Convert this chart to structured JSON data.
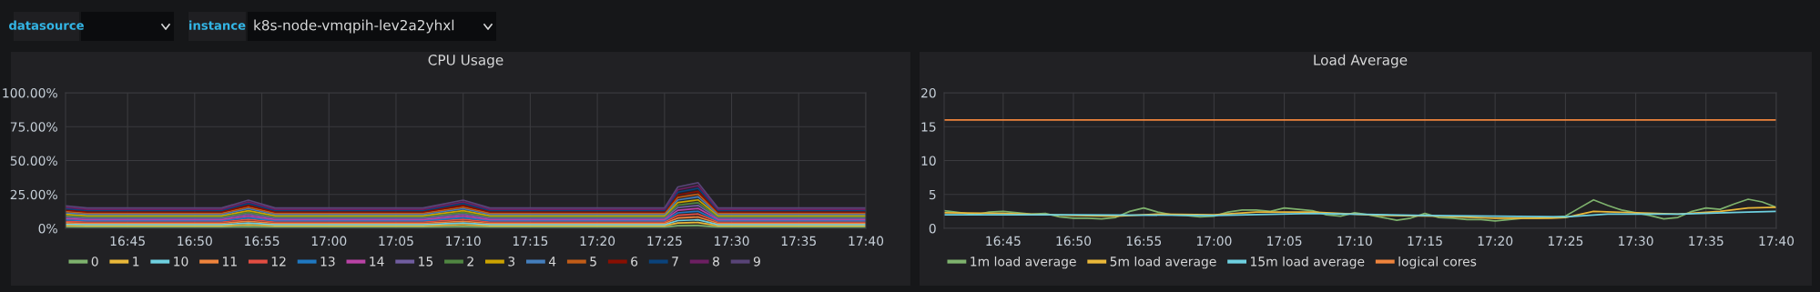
{
  "chart_data": [
    {
      "type": "other",
      "annotations": [
        "datasource",
        "instance",
        "k8s-node-vmqpih-lev2a2yhxl"
      ]
    },
    {
      "type": "area",
      "title": "CPU Usage",
      "stacked": true,
      "grid": true,
      "legend": "bottom",
      "x": [
        16.673,
        16.7,
        16.8667,
        16.9,
        16.9333,
        17.1167,
        17.1667,
        17.2,
        17.4167,
        17.4333,
        17.4583,
        17.4833,
        17.6667
      ],
      "xlim": [
        16.673,
        17.6667
      ],
      "xticks": [
        {
          "value": 16.75,
          "label": "16:45"
        },
        {
          "value": 16.8333,
          "label": "16:50"
        },
        {
          "value": 16.9167,
          "label": "16:55"
        },
        {
          "value": 17.0,
          "label": "17:00"
        },
        {
          "value": 17.0833,
          "label": "17:05"
        },
        {
          "value": 17.1667,
          "label": "17:10"
        },
        {
          "value": 17.25,
          "label": "17:15"
        },
        {
          "value": 17.3333,
          "label": "17:20"
        },
        {
          "value": 17.4167,
          "label": "17:25"
        },
        {
          "value": 17.5,
          "label": "17:30"
        },
        {
          "value": 17.5833,
          "label": "17:35"
        },
        {
          "value": 17.6667,
          "label": "17:40"
        }
      ],
      "ylim": [
        0,
        100
      ],
      "yticks": [
        {
          "value": 0,
          "label": "0%"
        },
        {
          "value": 25,
          "label": "25.00%"
        },
        {
          "value": 50,
          "label": "50.00%"
        },
        {
          "value": 75,
          "label": "75.00%"
        },
        {
          "value": 100,
          "label": "100.00%"
        }
      ],
      "series": [
        {
          "name": "0",
          "color": "#7eb26d",
          "values": [
            1.0,
            0.9,
            0.9,
            1.3,
            0.9,
            0.9,
            1.3,
            0.9,
            0.9,
            1.9,
            2.1,
            0.9,
            0.9
          ]
        },
        {
          "name": "1",
          "color": "#eab839",
          "values": [
            1.1,
            1.0,
            1.0,
            1.4,
            1.0,
            1.0,
            1.4,
            1.0,
            1.0,
            2.0,
            2.2,
            1.0,
            1.0
          ]
        },
        {
          "name": "10",
          "color": "#6ed0e0",
          "values": [
            1.0,
            0.9,
            0.9,
            1.2,
            0.9,
            0.9,
            1.2,
            0.9,
            0.9,
            1.8,
            2.0,
            0.9,
            0.9
          ]
        },
        {
          "name": "11",
          "color": "#ef843c",
          "values": [
            1.0,
            0.9,
            0.9,
            1.3,
            0.9,
            0.9,
            1.3,
            0.9,
            0.9,
            1.9,
            2.1,
            0.9,
            0.9
          ]
        },
        {
          "name": "12",
          "color": "#e24d42",
          "values": [
            1.1,
            1.0,
            1.0,
            1.4,
            1.0,
            1.0,
            1.4,
            1.0,
            1.0,
            2.0,
            2.2,
            1.0,
            1.0
          ]
        },
        {
          "name": "13",
          "color": "#1f78c1",
          "values": [
            1.0,
            0.9,
            0.9,
            1.2,
            0.9,
            0.9,
            1.2,
            0.9,
            0.9,
            1.8,
            2.0,
            0.9,
            0.9
          ]
        },
        {
          "name": "14",
          "color": "#ba43a6",
          "values": [
            1.0,
            0.9,
            0.9,
            1.3,
            0.9,
            0.9,
            1.3,
            0.9,
            0.9,
            1.9,
            2.1,
            0.9,
            0.9
          ]
        },
        {
          "name": "15",
          "color": "#705da0",
          "values": [
            1.1,
            1.0,
            1.0,
            1.4,
            1.0,
            1.0,
            1.4,
            1.0,
            1.0,
            2.0,
            2.2,
            1.0,
            1.0
          ]
        },
        {
          "name": "2",
          "color": "#508642",
          "values": [
            1.0,
            0.9,
            0.9,
            1.2,
            0.9,
            0.9,
            1.2,
            0.9,
            0.9,
            1.8,
            2.0,
            0.9,
            0.9
          ]
        },
        {
          "name": "3",
          "color": "#cca300",
          "values": [
            1.0,
            0.9,
            0.9,
            1.3,
            0.9,
            0.9,
            1.3,
            0.9,
            0.9,
            1.9,
            2.1,
            0.9,
            0.9
          ]
        },
        {
          "name": "4",
          "color": "#447ebc",
          "values": [
            1.1,
            1.0,
            1.0,
            1.4,
            1.0,
            1.0,
            1.4,
            1.0,
            1.0,
            2.0,
            2.2,
            1.0,
            1.0
          ]
        },
        {
          "name": "5",
          "color": "#c15c17",
          "values": [
            1.0,
            0.9,
            0.9,
            1.2,
            0.9,
            0.9,
            1.2,
            0.9,
            0.9,
            1.8,
            2.0,
            0.9,
            0.9
          ]
        },
        {
          "name": "6",
          "color": "#890f02",
          "values": [
            1.0,
            0.9,
            0.9,
            1.3,
            0.9,
            0.9,
            1.3,
            0.9,
            0.9,
            1.9,
            2.1,
            0.9,
            0.9
          ]
        },
        {
          "name": "7",
          "color": "#0a437c",
          "values": [
            1.1,
            1.0,
            1.0,
            1.4,
            1.0,
            1.0,
            1.4,
            1.0,
            1.0,
            2.0,
            2.2,
            1.0,
            1.0
          ]
        },
        {
          "name": "8",
          "color": "#6d1f62",
          "values": [
            1.0,
            0.9,
            0.9,
            1.2,
            0.9,
            0.9,
            1.2,
            0.9,
            0.9,
            1.8,
            2.0,
            0.9,
            0.9
          ]
        },
        {
          "name": "9",
          "color": "#584477",
          "values": [
            1.1,
            1.0,
            1.0,
            1.3,
            1.0,
            1.0,
            1.3,
            1.0,
            1.0,
            2.0,
            2.2,
            1.0,
            1.0
          ]
        }
      ]
    },
    {
      "type": "line",
      "title": "Load Average",
      "grid": true,
      "legend": "bottom",
      "xlim": [
        16.68,
        17.6667
      ],
      "xticks": [
        {
          "value": 16.75,
          "label": "16:45"
        },
        {
          "value": 16.8333,
          "label": "16:50"
        },
        {
          "value": 16.9167,
          "label": "16:55"
        },
        {
          "value": 17.0,
          "label": "17:00"
        },
        {
          "value": 17.0833,
          "label": "17:05"
        },
        {
          "value": 17.1667,
          "label": "17:10"
        },
        {
          "value": 17.25,
          "label": "17:15"
        },
        {
          "value": 17.3333,
          "label": "17:20"
        },
        {
          "value": 17.4167,
          "label": "17:25"
        },
        {
          "value": 17.5,
          "label": "17:30"
        },
        {
          "value": 17.5833,
          "label": "17:35"
        },
        {
          "value": 17.6667,
          "label": "17:40"
        }
      ],
      "ylim": [
        0,
        20
      ],
      "yticks": [
        0,
        5,
        10,
        15,
        20
      ],
      "series": [
        {
          "name": "1m load average",
          "color": "#7eb26d",
          "x": [
            16.68,
            16.7,
            16.7167,
            16.7333,
            16.75,
            16.7667,
            16.7833,
            16.8,
            16.8167,
            16.8333,
            16.85,
            16.8667,
            16.8833,
            16.9,
            16.9167,
            16.9333,
            16.95,
            16.9667,
            16.9833,
            17.0,
            17.0167,
            17.0333,
            17.05,
            17.0667,
            17.0833,
            17.1,
            17.1167,
            17.1333,
            17.15,
            17.1667,
            17.1833,
            17.2,
            17.2167,
            17.2333,
            17.25,
            17.2667,
            17.2833,
            17.3,
            17.3167,
            17.3333,
            17.35,
            17.3667,
            17.3833,
            17.4,
            17.4167,
            17.4333,
            17.45,
            17.4667,
            17.4833,
            17.5,
            17.5167,
            17.5333,
            17.55,
            17.5667,
            17.5833,
            17.6,
            17.6167,
            17.6333,
            17.65,
            17.6667
          ],
          "values": [
            2.6,
            2.3,
            2.0,
            2.4,
            2.5,
            2.3,
            2.1,
            2.2,
            1.7,
            1.5,
            1.5,
            1.4,
            1.6,
            2.5,
            3.0,
            2.4,
            2.0,
            1.9,
            1.7,
            1.8,
            2.4,
            2.7,
            2.7,
            2.5,
            3.0,
            2.8,
            2.6,
            2.0,
            1.8,
            2.3,
            2.0,
            1.6,
            1.2,
            1.5,
            2.2,
            1.6,
            1.5,
            1.3,
            1.3,
            1.1,
            1.3,
            1.5,
            1.5,
            1.6,
            1.8,
            3.0,
            4.2,
            3.4,
            2.7,
            2.3,
            1.9,
            1.4,
            1.6,
            2.5,
            3.0,
            2.8,
            3.6,
            4.3,
            3.9,
            3.1
          ]
        },
        {
          "name": "5m load average",
          "color": "#eab839",
          "x": [
            16.68,
            16.75,
            16.8333,
            16.8833,
            16.9333,
            17.0,
            17.05,
            17.1167,
            17.2,
            17.2667,
            17.3333,
            17.4,
            17.4167,
            17.45,
            17.5,
            17.55,
            17.6,
            17.6333,
            17.6667
          ],
          "values": [
            2.3,
            2.2,
            1.9,
            1.8,
            2.1,
            2.0,
            2.4,
            2.4,
            1.9,
            1.8,
            1.5,
            1.5,
            1.6,
            2.5,
            2.3,
            2.1,
            2.5,
            3.0,
            3.1
          ]
        },
        {
          "name": "15m load average",
          "color": "#6ed0e0",
          "x": [
            16.68,
            16.8333,
            17.0,
            17.1167,
            17.25,
            17.4167,
            17.4667,
            17.55,
            17.6333,
            17.6667
          ],
          "values": [
            2.0,
            2.0,
            1.9,
            2.2,
            1.9,
            1.7,
            2.1,
            2.1,
            2.4,
            2.5
          ]
        },
        {
          "name": "logical cores",
          "color": "#ef843c",
          "x": [
            16.68,
            17.6667
          ],
          "values": [
            16,
            16
          ]
        }
      ]
    }
  ]
}
